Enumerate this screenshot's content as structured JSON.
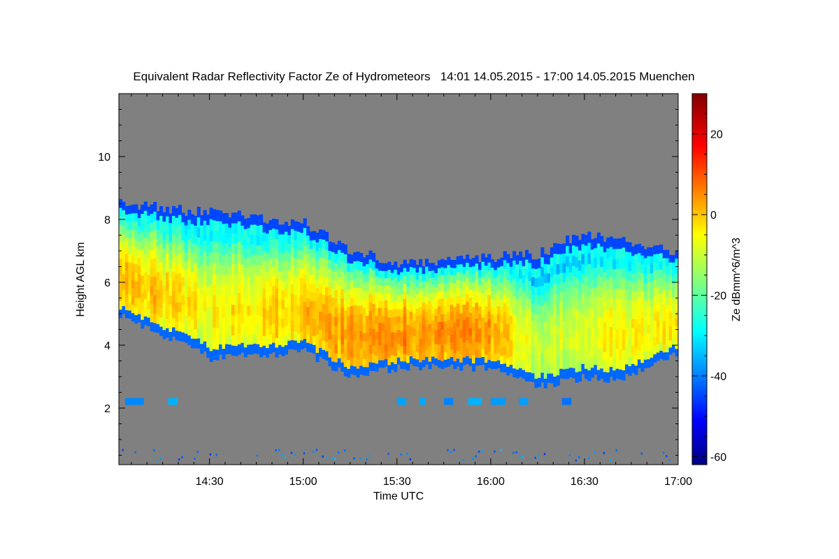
{
  "chart_data": {
    "type": "heatmap",
    "title": "Equivalent Radar Reflectivity Factor Ze of Hydrometeors   14:01 14.05.2015 - 17:00 14.05.2015 Muenchen",
    "xlabel": "Time UTC",
    "ylabel": "Height AGL km",
    "colorbar_label": "Ze dBmm^6/m^3",
    "x_range": [
      "14:01",
      "17:00"
    ],
    "x_ticks": [
      "14:30",
      "15:00",
      "15:30",
      "16:00",
      "16:30",
      "17:00"
    ],
    "ylim": [
      0.2,
      12
    ],
    "y_ticks": [
      "2",
      "4",
      "6",
      "8",
      "10"
    ],
    "y_tick_values": [
      2,
      4,
      6,
      8,
      10
    ],
    "colorbar_range": [
      -62,
      30
    ],
    "colorbar_ticks": [
      "20",
      "0",
      "-20",
      "-40",
      "-60"
    ],
    "colorbar_tick_values": [
      20,
      0,
      -20,
      -40,
      -60
    ],
    "background_color": "#808080",
    "colormap": [
      "#000080",
      "#0000ff",
      "#00ffff",
      "#ffff00",
      "#ff0000",
      "#800000"
    ],
    "cloud_layer": {
      "description_time": [
        "14:01",
        "14:30",
        "15:00",
        "15:15",
        "15:30",
        "16:00",
        "16:15",
        "16:30",
        "16:40",
        "17:00"
      ],
      "base_km": [
        5.0,
        3.6,
        3.8,
        3.0,
        3.3,
        3.3,
        2.7,
        3.0,
        2.9,
        3.8
      ],
      "top_km": [
        8.5,
        8.2,
        7.9,
        7.0,
        6.6,
        6.8,
        6.9,
        7.6,
        7.3,
        7.0
      ],
      "core_ze_dbz": [
        2,
        -5,
        0,
        4,
        5,
        3,
        -10,
        -8,
        -5,
        -3
      ]
    },
    "low_layer": {
      "height_km": 2.2,
      "ze_dbz": -38
    }
  }
}
